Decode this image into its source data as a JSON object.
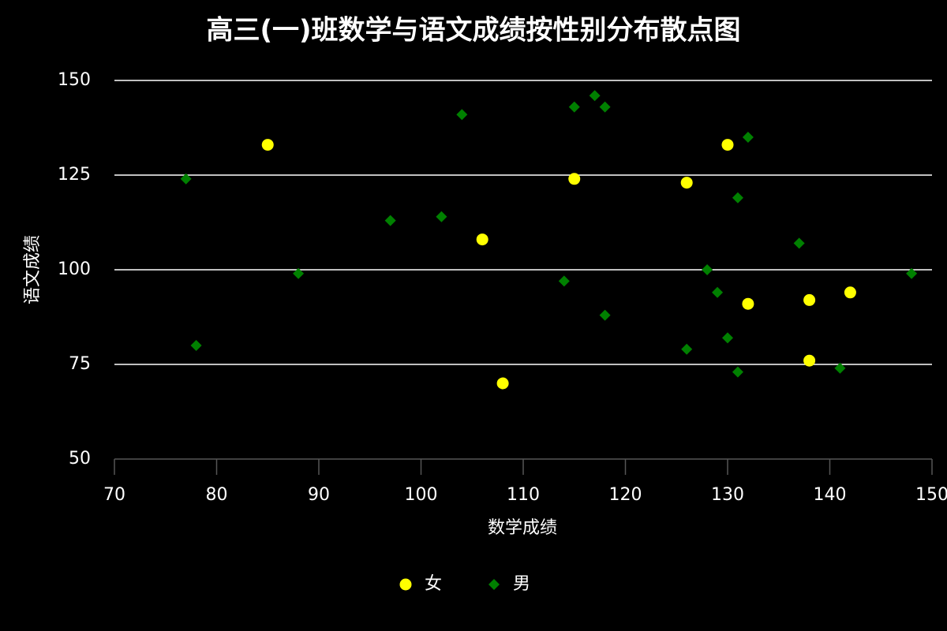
{
  "chart_data": {
    "type": "scatter",
    "title": "高三(一)班数学与语文成绩按性别分布散点图",
    "x_label": "数学成绩",
    "y_label": "语文成绩",
    "xlim": [
      70,
      150
    ],
    "xticks": [
      70,
      80,
      90,
      100,
      110,
      120,
      130,
      140,
      150
    ],
    "ylim": [
      50,
      150
    ],
    "yticks": [
      50,
      75,
      100,
      125,
      150
    ],
    "grid": true,
    "legend": "bottom",
    "series": [
      {
        "name": "女",
        "color": "#ffff00",
        "marker": "circle",
        "x": [
          85,
          106,
          108,
          115,
          126,
          130,
          132,
          138,
          138,
          142
        ],
        "values": [
          133,
          108,
          70,
          124,
          123,
          133,
          91,
          92,
          76,
          94
        ]
      },
      {
        "name": "男",
        "color": "#008000",
        "marker": "diamond",
        "x": [
          77,
          78,
          88,
          97,
          102,
          104,
          114,
          115,
          117,
          118,
          118,
          126,
          128,
          129,
          130,
          131,
          131,
          132,
          137,
          141,
          148
        ],
        "values": [
          124,
          80,
          99,
          113,
          114,
          141,
          97,
          143,
          146,
          143,
          88,
          79,
          100,
          94,
          82,
          119,
          73,
          135,
          107,
          74,
          99
        ]
      }
    ]
  }
}
